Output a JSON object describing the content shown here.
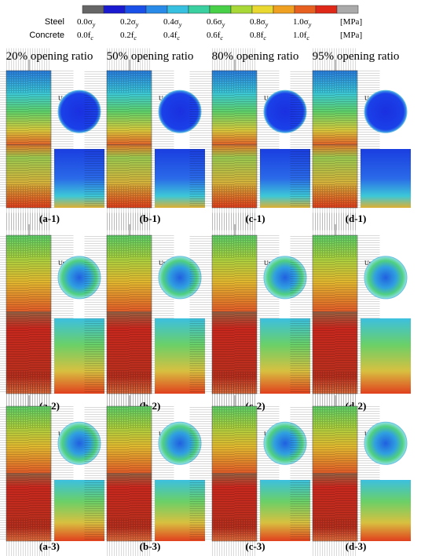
{
  "legend": {
    "steel_label": "Steel",
    "concrete_label": "Concrete",
    "steel_ticks": [
      {
        "text": "0.0σ",
        "sub": "y"
      },
      {
        "text": "0.2σ",
        "sub": "y"
      },
      {
        "text": "0.4σ",
        "sub": "y"
      },
      {
        "text": "0.6σ",
        "sub": "y"
      },
      {
        "text": "0.8σ",
        "sub": "y"
      },
      {
        "text": "1.0σ",
        "sub": "y"
      }
    ],
    "concrete_ticks": [
      {
        "text": "0.0f",
        "sub": "c"
      },
      {
        "text": "0.2f",
        "sub": "c"
      },
      {
        "text": "0.4f",
        "sub": "c"
      },
      {
        "text": "0.6f",
        "sub": "c"
      },
      {
        "text": "0.8f",
        "sub": "c"
      },
      {
        "text": "1.0f",
        "sub": "c"
      }
    ],
    "steel_unit": "[MPa]",
    "concrete_unit": "[MPa]"
  },
  "columns": [
    "20% opening ratio",
    "50% opening ratio",
    "80% opening ratio",
    "95% opening ratio"
  ],
  "panels": [
    [
      "(a-1)",
      "(b-1)",
      "(c-1)",
      "(d-1)"
    ],
    [
      "(a-2)",
      "(b-2)",
      "(c-2)",
      "(d-2)"
    ],
    [
      "(a-3)",
      "(b-3)",
      "(c-3)",
      "(d-3)"
    ]
  ],
  "upper_view": "Upper view"
}
